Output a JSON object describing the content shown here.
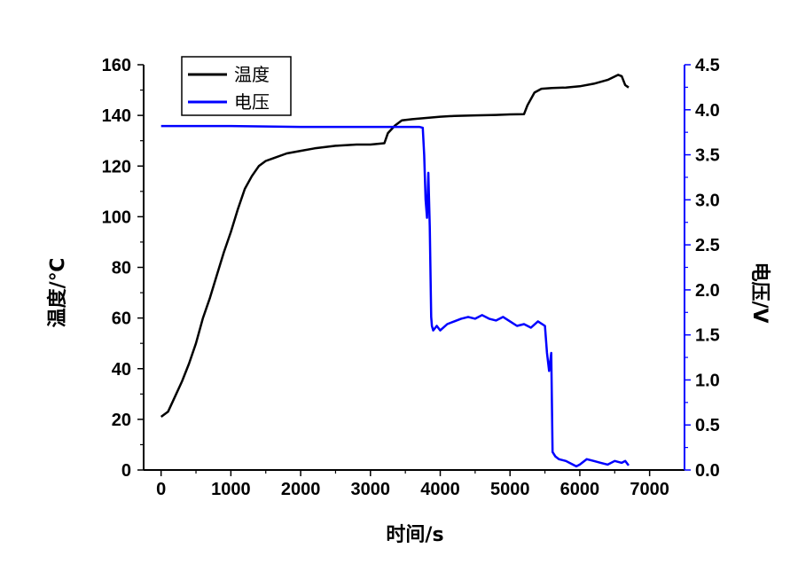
{
  "chart_data": {
    "type": "line",
    "xlabel": "时间/s",
    "ylabel_left": "温度/℃",
    "ylabel_right": "电压/V",
    "xlim": [
      -250,
      7500
    ],
    "ylim_left": [
      0,
      160
    ],
    "ylim_right": [
      0,
      4.5
    ],
    "x_ticks": [
      "0",
      "1000",
      "2000",
      "3000",
      "4000",
      "5000",
      "6000",
      "7000"
    ],
    "y_left_ticks": [
      "0",
      "20",
      "40",
      "60",
      "80",
      "100",
      "120",
      "140",
      "160"
    ],
    "y_right_ticks": [
      "0.0",
      "0.5",
      "1.0",
      "1.5",
      "2.0",
      "2.5",
      "3.0",
      "3.5",
      "4.0",
      "4.5"
    ],
    "legend_position": "top-left",
    "grid": false,
    "series": [
      {
        "name": "温度",
        "axis": "left",
        "color": "#000000",
        "points": [
          [
            0,
            21
          ],
          [
            100,
            23
          ],
          [
            200,
            29
          ],
          [
            300,
            35
          ],
          [
            400,
            42
          ],
          [
            500,
            50
          ],
          [
            600,
            60
          ],
          [
            700,
            68
          ],
          [
            800,
            77
          ],
          [
            900,
            86
          ],
          [
            1000,
            94
          ],
          [
            1100,
            103
          ],
          [
            1200,
            111
          ],
          [
            1300,
            116
          ],
          [
            1400,
            120
          ],
          [
            1500,
            122
          ],
          [
            1600,
            123
          ],
          [
            1800,
            125
          ],
          [
            2000,
            126
          ],
          [
            2200,
            127
          ],
          [
            2500,
            128
          ],
          [
            2800,
            128.5
          ],
          [
            3000,
            128.5
          ],
          [
            3200,
            129
          ],
          [
            3250,
            133
          ],
          [
            3350,
            136
          ],
          [
            3450,
            138
          ],
          [
            3600,
            138.5
          ],
          [
            3800,
            139
          ],
          [
            4000,
            139.5
          ],
          [
            4200,
            139.8
          ],
          [
            4500,
            140
          ],
          [
            4800,
            140.2
          ],
          [
            5000,
            140.4
          ],
          [
            5200,
            140.5
          ],
          [
            5250,
            144
          ],
          [
            5350,
            149
          ],
          [
            5450,
            150.5
          ],
          [
            5600,
            150.8
          ],
          [
            5800,
            151
          ],
          [
            6000,
            151.5
          ],
          [
            6200,
            152.5
          ],
          [
            6400,
            154
          ],
          [
            6550,
            156
          ],
          [
            6600,
            155.5
          ],
          [
            6650,
            152
          ],
          [
            6700,
            151
          ]
        ]
      },
      {
        "name": "电压",
        "axis": "right",
        "color": "#0000ff",
        "points": [
          [
            0,
            3.82
          ],
          [
            500,
            3.82
          ],
          [
            1000,
            3.82
          ],
          [
            2000,
            3.81
          ],
          [
            3000,
            3.81
          ],
          [
            3500,
            3.81
          ],
          [
            3700,
            3.81
          ],
          [
            3750,
            3.8
          ],
          [
            3770,
            3.5
          ],
          [
            3790,
            3.0
          ],
          [
            3810,
            2.8
          ],
          [
            3830,
            3.3
          ],
          [
            3850,
            2.7
          ],
          [
            3870,
            1.7
          ],
          [
            3880,
            1.6
          ],
          [
            3900,
            1.55
          ],
          [
            3950,
            1.6
          ],
          [
            4000,
            1.55
          ],
          [
            4100,
            1.62
          ],
          [
            4200,
            1.65
          ],
          [
            4300,
            1.68
          ],
          [
            4400,
            1.7
          ],
          [
            4500,
            1.68
          ],
          [
            4600,
            1.72
          ],
          [
            4700,
            1.68
          ],
          [
            4800,
            1.66
          ],
          [
            4900,
            1.7
          ],
          [
            5000,
            1.65
          ],
          [
            5100,
            1.6
          ],
          [
            5200,
            1.62
          ],
          [
            5300,
            1.58
          ],
          [
            5400,
            1.65
          ],
          [
            5500,
            1.6
          ],
          [
            5530,
            1.3
          ],
          [
            5560,
            1.1
          ],
          [
            5590,
            1.3
          ],
          [
            5610,
            0.2
          ],
          [
            5650,
            0.15
          ],
          [
            5700,
            0.12
          ],
          [
            5800,
            0.1
          ],
          [
            5900,
            0.06
          ],
          [
            5950,
            0.04
          ],
          [
            6000,
            0.06
          ],
          [
            6100,
            0.12
          ],
          [
            6200,
            0.1
          ],
          [
            6300,
            0.08
          ],
          [
            6400,
            0.06
          ],
          [
            6500,
            0.1
          ],
          [
            6600,
            0.08
          ],
          [
            6650,
            0.1
          ],
          [
            6700,
            0.05
          ]
        ]
      }
    ]
  }
}
